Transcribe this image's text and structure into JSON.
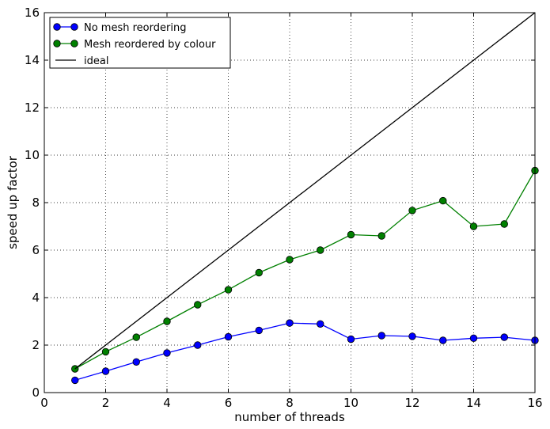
{
  "chart_data": {
    "type": "line",
    "xlabel": "number of threads",
    "ylabel": "speed up factor",
    "xlim": [
      0,
      16
    ],
    "ylim": [
      0,
      16
    ],
    "xticks": [
      0,
      2,
      4,
      6,
      8,
      10,
      12,
      14,
      16
    ],
    "yticks": [
      0,
      2,
      4,
      6,
      8,
      10,
      12,
      14,
      16
    ],
    "grid": true,
    "legend_position": "top-left",
    "x": [
      1,
      2,
      3,
      4,
      5,
      6,
      7,
      8,
      9,
      10,
      11,
      12,
      13,
      14,
      15,
      16
    ],
    "series": [
      {
        "name": "No mesh reordering",
        "color": "#0000ff",
        "marker": "circle",
        "values": [
          0.52,
          0.9,
          1.29,
          1.67,
          2.0,
          2.35,
          2.62,
          2.93,
          2.89,
          2.25,
          2.4,
          2.37,
          2.2,
          2.29,
          2.33,
          2.2
        ]
      },
      {
        "name": "Mesh reordered by colour",
        "color": "#008000",
        "marker": "circle",
        "values": [
          1.0,
          1.72,
          2.33,
          3.0,
          3.7,
          4.33,
          5.05,
          5.6,
          6.0,
          6.65,
          6.6,
          7.67,
          8.08,
          7.0,
          7.1,
          9.35
        ]
      },
      {
        "name": "ideal",
        "color": "#000000",
        "marker": "none",
        "x": [
          1,
          16
        ],
        "values": [
          1,
          16
        ]
      }
    ]
  }
}
